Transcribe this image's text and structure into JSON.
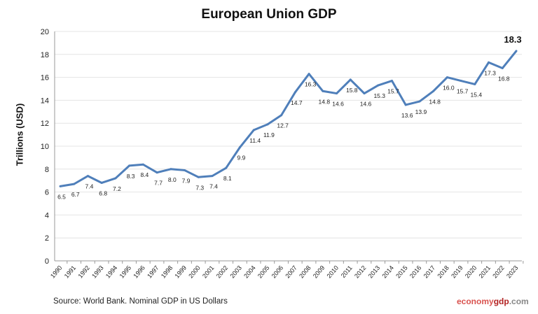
{
  "chart_data": {
    "type": "line",
    "title": "European Union GDP",
    "ylabel": "Trillions (USD)",
    "xlabel": "",
    "ylim": [
      0,
      20
    ],
    "yticks": [
      0,
      2,
      4,
      6,
      8,
      10,
      12,
      14,
      16,
      18,
      20
    ],
    "grid": true,
    "line_color": "#4f7fba",
    "x": [
      "1990",
      "1991",
      "1992",
      "1993",
      "1994",
      "1995",
      "1996",
      "1997",
      "1998",
      "1999",
      "2000",
      "2001",
      "2002",
      "2003",
      "2004",
      "2005",
      "2006",
      "2007",
      "2008",
      "2009",
      "2010",
      "2011",
      "2012",
      "2013",
      "2014",
      "2015",
      "2016",
      "2017",
      "2018",
      "2019",
      "2020",
      "2021",
      "2022",
      "2023"
    ],
    "values": [
      6.5,
      6.7,
      7.4,
      6.8,
      7.2,
      8.3,
      8.4,
      7.7,
      8.0,
      7.9,
      7.3,
      7.4,
      8.1,
      9.9,
      11.4,
      11.9,
      12.7,
      14.7,
      16.3,
      14.8,
      14.6,
      15.8,
      14.6,
      15.3,
      15.7,
      13.6,
      13.9,
      14.8,
      16.0,
      15.7,
      15.4,
      17.3,
      16.8,
      18.3
    ]
  },
  "footer": {
    "source": "Source: World Bank.  Nominal GDP in US Dollars",
    "brand_a": "economy",
    "brand_b": "gdp",
    "brand_c": ".com"
  }
}
